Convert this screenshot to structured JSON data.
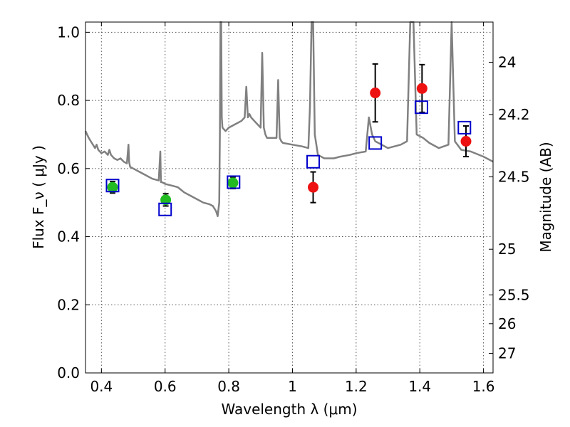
{
  "chart_data": {
    "type": "scatter",
    "xlabel": "Wavelength  λ (μm)",
    "ylabel": "Flux  F_ν  ( μJy )",
    "y2label": "Magnitude (AB)",
    "xlim": [
      0.35,
      1.63
    ],
    "ylim": [
      0.0,
      1.03
    ],
    "grid": true,
    "x_ticks": [
      0.4,
      0.6,
      0.8,
      1.0,
      1.2,
      1.4,
      1.6
    ],
    "x_tick_labels": [
      "0.4",
      "0.6",
      "0.8",
      "1",
      "1.2",
      "1.4",
      "1.6"
    ],
    "y_ticks": [
      0.0,
      0.2,
      0.4,
      0.6,
      0.8,
      1.0
    ],
    "y_tick_labels": [
      "0.0",
      "0.2",
      "0.4",
      "0.6",
      "0.8",
      "1.0"
    ],
    "y2_ticks": [
      24,
      24.2,
      24.5,
      25,
      25.5,
      26,
      27
    ],
    "y2_tick_labels": [
      "24",
      "24.2",
      "24.5",
      "25",
      "25.5",
      "26",
      "27"
    ],
    "colors": {
      "spectrum": "#808080",
      "model_squares": "#0000cc",
      "optical_points": "#22bb22",
      "nir_points": "#ee1111",
      "errorbars": "#000000"
    },
    "series": [
      {
        "kind": "model",
        "marker": "open-square",
        "x": [
          0.435,
          0.6,
          0.815,
          1.065,
          1.26,
          1.405,
          1.54
        ],
        "y": [
          0.55,
          0.48,
          0.56,
          0.62,
          0.675,
          0.78,
          0.72
        ]
      },
      {
        "kind": "observed-optical",
        "marker": "filled-circle",
        "x": [
          0.435,
          0.602,
          0.813
        ],
        "y": [
          0.545,
          0.508,
          0.558
        ],
        "yerr": [
          0.017,
          0.018,
          0.017
        ]
      },
      {
        "kind": "observed-nir",
        "marker": "filled-circle",
        "x": [
          1.065,
          1.26,
          1.407,
          1.545
        ],
        "y": [
          0.545,
          0.822,
          0.835,
          0.68
        ],
        "yerr": [
          0.045,
          0.085,
          0.07,
          0.045
        ]
      },
      {
        "kind": "spectrum",
        "marker": "line",
        "x": [
          0.35,
          0.36,
          0.37,
          0.38,
          0.385,
          0.39,
          0.4,
          0.41,
          0.42,
          0.425,
          0.43,
          0.44,
          0.45,
          0.46,
          0.47,
          0.48,
          0.485,
          0.487,
          0.49,
          0.5,
          0.52,
          0.54,
          0.56,
          0.58,
          0.585,
          0.587,
          0.59,
          0.6,
          0.62,
          0.64,
          0.66,
          0.68,
          0.7,
          0.72,
          0.74,
          0.75,
          0.76,
          0.765,
          0.77,
          0.772,
          0.774,
          0.776,
          0.778,
          0.78,
          0.79,
          0.8,
          0.82,
          0.84,
          0.85,
          0.855,
          0.86,
          0.865,
          0.87,
          0.88,
          0.9,
          0.905,
          0.91,
          0.915,
          0.92,
          0.95,
          0.955,
          0.96,
          0.965,
          0.97,
          1.0,
          1.03,
          1.05,
          1.055,
          1.06,
          1.065,
          1.07,
          1.08,
          1.1,
          1.13,
          1.15,
          1.18,
          1.2,
          1.23,
          1.24,
          1.25,
          1.26,
          1.28,
          1.3,
          1.32,
          1.34,
          1.36,
          1.37,
          1.38,
          1.39,
          1.4,
          1.41,
          1.43,
          1.46,
          1.49,
          1.5,
          1.51,
          1.53,
          1.56,
          1.6,
          1.63
        ],
        "y": [
          0.71,
          0.69,
          0.675,
          0.66,
          0.67,
          0.655,
          0.645,
          0.65,
          0.64,
          0.655,
          0.64,
          0.63,
          0.625,
          0.63,
          0.62,
          0.615,
          0.67,
          0.62,
          0.605,
          0.6,
          0.59,
          0.58,
          0.57,
          0.565,
          0.65,
          0.56,
          0.56,
          0.555,
          0.55,
          0.545,
          0.53,
          0.52,
          0.51,
          0.5,
          0.495,
          0.49,
          0.475,
          0.46,
          0.5,
          0.7,
          1.03,
          1.03,
          0.75,
          0.72,
          0.71,
          0.72,
          0.73,
          0.74,
          0.75,
          0.84,
          0.75,
          0.76,
          0.75,
          0.74,
          0.72,
          0.94,
          0.72,
          0.7,
          0.69,
          0.69,
          0.86,
          0.69,
          0.68,
          0.675,
          0.67,
          0.665,
          0.66,
          0.78,
          1.03,
          1.03,
          0.7,
          0.64,
          0.63,
          0.63,
          0.635,
          0.64,
          0.645,
          0.65,
          0.75,
          0.7,
          0.68,
          0.67,
          0.66,
          0.665,
          0.67,
          0.68,
          1.03,
          1.03,
          0.7,
          0.695,
          0.69,
          0.675,
          0.66,
          0.67,
          1.03,
          0.68,
          0.655,
          0.65,
          0.635,
          0.62
        ]
      }
    ]
  }
}
